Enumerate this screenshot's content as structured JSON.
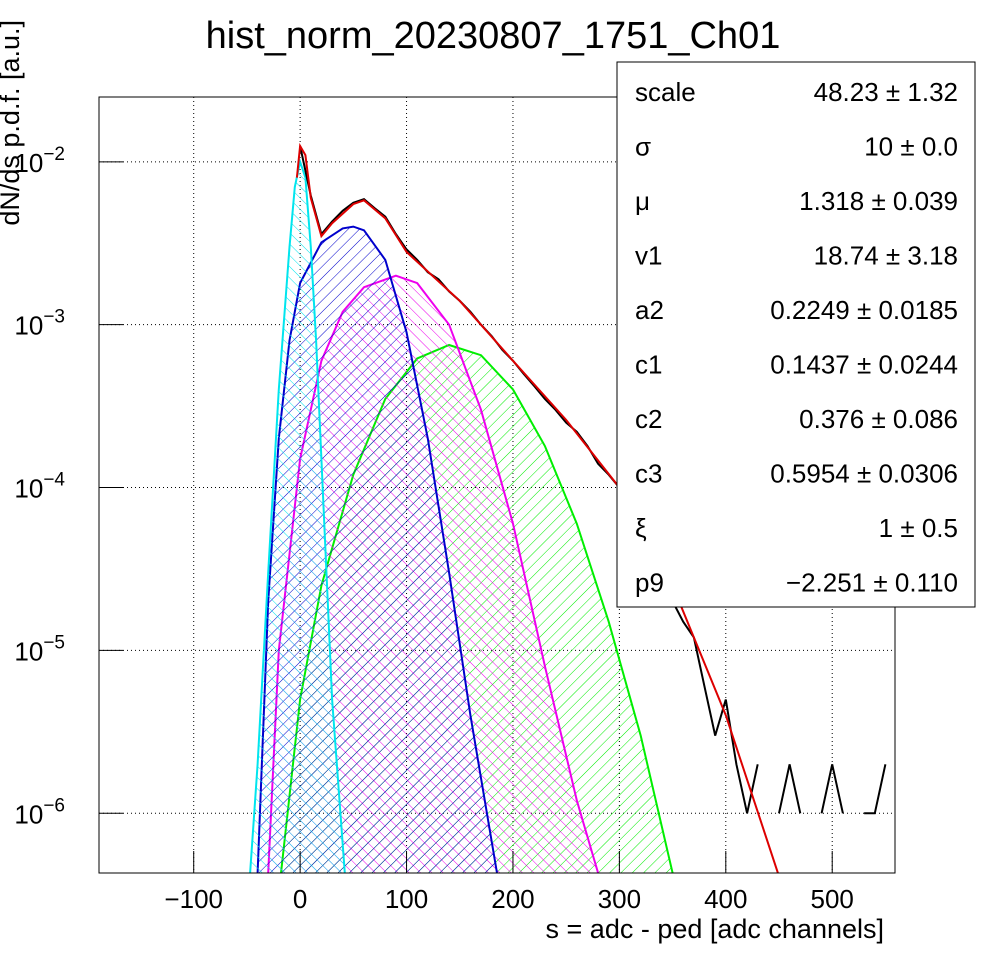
{
  "chart_data": {
    "type": "line",
    "title": "hist_norm_20230807_1751_Ch01",
    "x_label": "s = adc - ped [adc channels]",
    "y_label": "dN/ds p.d.f. [a.u.]",
    "xlim": [
      -189,
      559
    ],
    "ylim": [
      4.3e-07,
      0.025
    ],
    "log_y": true,
    "grid": true,
    "xticks": [
      {
        "value": -100,
        "label": "−100"
      },
      0,
      100,
      200,
      300,
      400,
      500
    ],
    "yticks": [
      {
        "value": 1e-06,
        "label": "10−6"
      },
      {
        "value": 1e-05,
        "label": "10−5"
      },
      {
        "value": 0.0001,
        "label": "10−4"
      },
      {
        "value": 0.001,
        "label": "10−3"
      },
      {
        "value": 0.01,
        "label": "10−2"
      }
    ],
    "series": [
      {
        "color": "#00ee00",
        "hatched": true,
        "x": [
          -18,
          0,
          20,
          50,
          80,
          110,
          140,
          170,
          200,
          230,
          260,
          290,
          320,
          350
        ],
        "values": [
          4.3e-07,
          5e-06,
          2.5e-05,
          0.00012,
          0.00035,
          0.00062,
          0.00075,
          0.00065,
          0.0004,
          0.00018,
          6e-05,
          1.5e-05,
          3e-06,
          4.3e-07
        ]
      },
      {
        "color": "#ee00ee",
        "hatched": true,
        "x": [
          -30,
          -20,
          0,
          20,
          40,
          60,
          90,
          110,
          140,
          170,
          200,
          230,
          260,
          280
        ],
        "values": [
          4.3e-07,
          1e-05,
          0.00015,
          0.0006,
          0.0012,
          0.0017,
          0.002,
          0.0018,
          0.001,
          0.0003,
          6e-05,
          8e-06,
          1.2e-06,
          4.3e-07
        ]
      },
      {
        "color": "#0000cc",
        "hatched": true,
        "x": [
          -40,
          -30,
          -20,
          -10,
          0,
          20,
          40,
          50,
          60,
          80,
          100,
          120,
          140,
          160,
          185
        ],
        "values": [
          4.3e-07,
          2e-05,
          0.0002,
          0.0008,
          0.0018,
          0.0032,
          0.0039,
          0.004,
          0.0038,
          0.0025,
          0.0009,
          0.0002,
          3e-05,
          4e-06,
          4.3e-07
        ]
      },
      {
        "color": "#00e5ee",
        "hatched": true,
        "x": [
          -47,
          -40,
          -30,
          -20,
          -10,
          -5,
          0,
          5,
          10,
          15,
          20,
          30,
          42
        ],
        "values": [
          4.3e-07,
          2e-06,
          3e-05,
          0.0004,
          0.003,
          0.007,
          0.01,
          0.008,
          0.003,
          0.0008,
          0.00015,
          5e-06,
          4.3e-07
        ]
      },
      {
        "color": "#000000",
        "hatched": false,
        "x": [
          0,
          10,
          20,
          30,
          40,
          50,
          60,
          70,
          80,
          90,
          100,
          110,
          120,
          130,
          140,
          150,
          160,
          170,
          180,
          190,
          200,
          210,
          220,
          230,
          240,
          250,
          260,
          270,
          280,
          290,
          300,
          310,
          320,
          330,
          340,
          350,
          360,
          370,
          380,
          390,
          400,
          410,
          420,
          430,
          440,
          450,
          460,
          470,
          480,
          490,
          500,
          510,
          520,
          530,
          540,
          550
        ],
        "values": [
          0.0125,
          0.0062,
          0.0036,
          0.0043,
          0.005,
          0.0056,
          0.0059,
          0.0052,
          0.0046,
          0.0036,
          0.0029,
          0.0025,
          0.0021,
          0.0019,
          0.0016,
          0.0014,
          0.0012,
          0.001,
          0.00085,
          0.0007,
          0.0006,
          0.0005,
          0.00042,
          0.00035,
          0.0003,
          0.00025,
          0.00022,
          0.00018,
          0.00014,
          0.00012,
          0.0001,
          7e-05,
          5e-05,
          4e-05,
          3e-05,
          2e-05,
          1.5e-05,
          1.2e-05,
          6e-06,
          3e-06,
          5e-06,
          2e-06,
          1e-06,
          2e-06,
          null,
          1e-06,
          2e-06,
          1e-06,
          null,
          1e-06,
          2e-06,
          1e-06,
          null,
          1e-06,
          1e-06,
          2e-06
        ]
      },
      {
        "color": "#dd0000",
        "hatched": false,
        "x": [
          -3,
          0,
          5,
          10,
          20,
          30,
          50,
          60,
          80,
          100,
          150,
          200,
          250,
          300,
          350,
          400,
          449
        ],
        "values": [
          0.008,
          0.0125,
          0.011,
          0.006,
          0.0035,
          0.0042,
          0.0055,
          0.0058,
          0.0045,
          0.0028,
          0.0014,
          0.0006,
          0.00026,
          0.0001,
          2.5e-05,
          4e-06,
          4.3e-07
        ]
      }
    ],
    "stats": [
      {
        "name": "scale",
        "value": "48.23 ± 1.32"
      },
      {
        "name": "σ",
        "value": "10 ± 0.0"
      },
      {
        "name": "μ",
        "value": "1.318 ± 0.039"
      },
      {
        "name": "v1",
        "value": "18.74 ± 3.18"
      },
      {
        "name": "a2",
        "value": "0.2249 ± 0.0185"
      },
      {
        "name": "c1",
        "value": "0.1437 ± 0.0244"
      },
      {
        "name": "c2",
        "value": "0.376 ± 0.086"
      },
      {
        "name": "c3",
        "value": "0.5954 ± 0.0306"
      },
      {
        "name": "ξ",
        "value": "1 ± 0.5"
      },
      {
        "name": "p9",
        "value": "−2.251 ± 0.110"
      }
    ]
  }
}
